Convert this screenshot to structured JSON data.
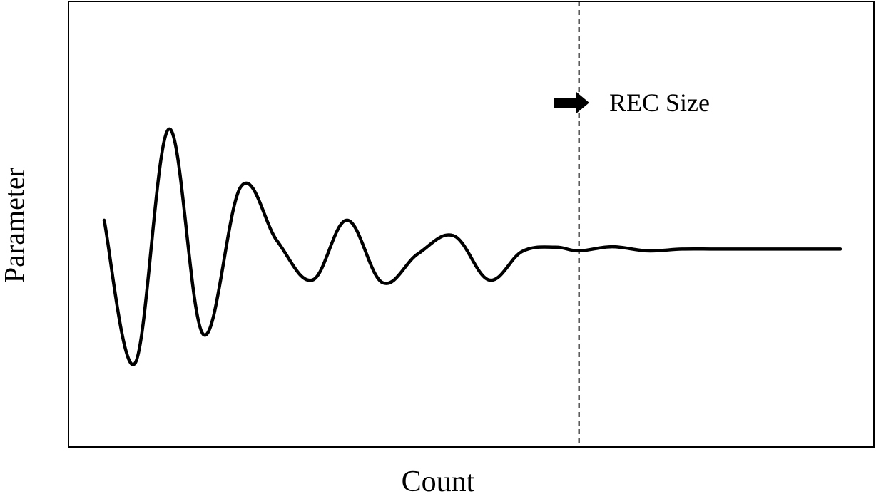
{
  "chart_data": {
    "type": "line",
    "title": "",
    "xlabel": "Count",
    "ylabel": "Parameter",
    "grid": false,
    "x_ticks_shown": false,
    "y_ticks_shown": false,
    "xlim": [
      0,
      100
    ],
    "ylim": [
      -60,
      60
    ],
    "series": [
      {
        "color": "#000000",
        "x": [
          0,
          4.2,
          8.8,
          13.5,
          18.6,
          23.5,
          28.3,
          33.0,
          37.8,
          42.6,
          47.5,
          52.3,
          56.8,
          61.3,
          64.5,
          69.0,
          73.8,
          78.5,
          83.0,
          88.0,
          93.0,
          100
        ],
        "y": [
          11,
          -44,
          46,
          -33,
          24,
          3,
          -12,
          11,
          -13,
          -2,
          5,
          -12,
          -1,
          0.6,
          -0.8,
          0.8,
          -0.8,
          -0.1,
          -0.1,
          -0.1,
          -0.1,
          -0.1
        ]
      }
    ],
    "annotations": [
      {
        "type": "vline",
        "x": 64.5,
        "style": "dashed"
      },
      {
        "type": "arrow-label",
        "text": "REC Size",
        "direction": "right",
        "x": 67,
        "y": 42
      }
    ]
  }
}
